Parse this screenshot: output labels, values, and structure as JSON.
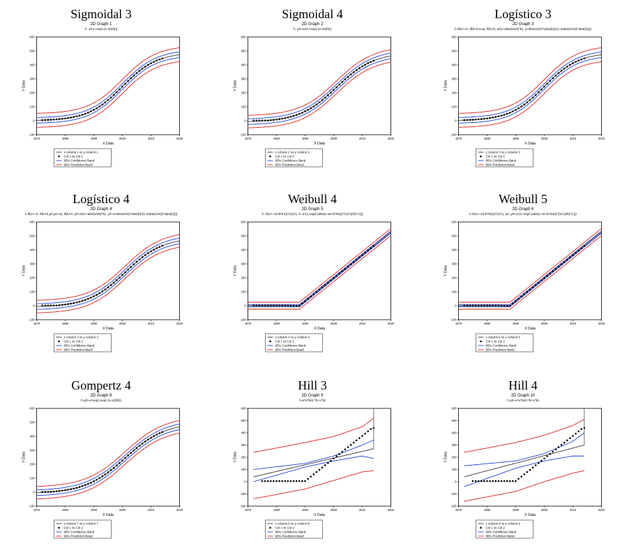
{
  "figure": {
    "colors": {
      "fit": "#333333",
      "confidence": "#1f3fd6",
      "prediction": "#e02020",
      "data_points": "#000000",
      "axes": "#000000"
    },
    "panels": [
      {
        "id": "sigmoidal-3",
        "title": "Sigmoidal 3",
        "subtitle": "2D Graph 1",
        "formula": "f= a/(1+exp(-(x-x0)/b))",
        "legend": [
          "x column 1 vs y column 1",
          "Col 1 vs Col 2",
          "95% Confidence Band",
          "95% Prediction Band"
        ],
        "chart_data": {
          "type": "line",
          "model": "sigmoid",
          "xlabel": "X Data",
          "ylabel": "Y Data",
          "xlim": [
            1970,
            2020
          ],
          "ylim": [
            -100,
            600
          ],
          "xticks": [
            1970,
            1980,
            1990,
            2000,
            2010,
            2020
          ],
          "yticks": [
            -100,
            0,
            100,
            200,
            300,
            400,
            500,
            600
          ],
          "fit": {
            "a": 490,
            "x0": 2000,
            "b": 6,
            "y0": 0
          },
          "confidence_halfwidth": 20,
          "prediction_halfwidth": 50,
          "points": {
            "x_start": 1972,
            "x_end": 2014,
            "step": 1
          }
        }
      },
      {
        "id": "sigmoidal-4",
        "title": "Sigmoidal 4",
        "subtitle": "2D Graph 2",
        "formula": "f= y0+a/(1+exp(-(x-x0)/b))",
        "legend": [
          "x column 2 vs y column 2",
          "Col 1 vs Col 2",
          "95% Confidence Band",
          "95% Prediction Band"
        ],
        "chart_data": {
          "type": "line",
          "model": "sigmoid",
          "xlabel": "X Data",
          "ylabel": "Y Data",
          "xlim": [
            1970,
            2020
          ],
          "ylim": [
            -100,
            600
          ],
          "xticks": [
            1970,
            1980,
            1990,
            2000,
            2010,
            2020
          ],
          "yticks": [
            -100,
            0,
            100,
            200,
            300,
            400,
            500,
            600
          ],
          "fit": {
            "a": 500,
            "x0": 2001,
            "b": 6.5,
            "y0": -10
          },
          "confidence_halfwidth": 20,
          "prediction_halfwidth": 45,
          "points": {
            "x_start": 1972,
            "x_end": 2014,
            "step": 1
          }
        }
      },
      {
        "id": "logistico-3",
        "title": "Logístico 3",
        "subtitle": "2D Graph 3",
        "formula": "f=if(x<=0, if(b<0,0,a), if(b>0, a/(1+abs(x/x0)^b), a*abs(x/x0)^(abs(b))/(1+(abs(x/x0))^abs(b))))",
        "legend": [
          "x column 3 vs y column 3",
          "Col 1 vs Col 2",
          "95% Confidence Band",
          "95% Prediction Band"
        ],
        "chart_data": {
          "type": "line",
          "model": "sigmoid",
          "xlabel": "X Data",
          "ylabel": "Y Data",
          "xlim": [
            1970,
            2020
          ],
          "ylim": [
            -100,
            600
          ],
          "xticks": [
            1970,
            1980,
            1990,
            2000,
            2010,
            2020
          ],
          "yticks": [
            -100,
            0,
            100,
            200,
            300,
            400,
            500,
            600
          ],
          "fit": {
            "a": 490,
            "x0": 2000,
            "b": 6,
            "y0": 0
          },
          "confidence_halfwidth": 20,
          "prediction_halfwidth": 50,
          "points": {
            "x_start": 1972,
            "x_end": 2014,
            "step": 1
          }
        }
      },
      {
        "id": "logistico-4",
        "title": "Logístico 4",
        "subtitle": "2D Graph 4",
        "formula": "f=if(x<=0, if(b<0,y0,y0+a), if(b>0, y0+a/(1+abs(x/x0)^b), y0+a*abs(x/x0)^abs(b)/(1+(abs(x/x0))^abs(b))))",
        "legend": [
          "x column 3 vs y column 3",
          "Col 1 vs Col 2",
          "95% Confidence Band",
          "95% Prediction Band"
        ],
        "chart_data": {
          "type": "line",
          "model": "sigmoid",
          "xlabel": "X Data",
          "ylabel": "Y Data",
          "xlim": [
            1970,
            2020
          ],
          "ylim": [
            -100,
            600
          ],
          "xticks": [
            1970,
            1980,
            1990,
            2000,
            2010,
            2020
          ],
          "yticks": [
            -100,
            0,
            100,
            200,
            300,
            400,
            500,
            600
          ],
          "fit": {
            "a": 500,
            "x0": 2001,
            "b": 6.5,
            "y0": -10
          },
          "confidence_halfwidth": 20,
          "prediction_halfwidth": 45,
          "points": {
            "x_start": 1972,
            "x_end": 2014,
            "step": 1
          }
        }
      },
      {
        "id": "weibull-4",
        "title": "Weibull 4",
        "subtitle": "2D Graph 5",
        "formula": "f= if(x<=x0-b*ln(2)^(1/c), 0, a*(1-exp(-(abs(x-x0+b*ln(2)^(1/c))/b)^c)))",
        "legend": [
          "x column 4 vs y column 4",
          "Col 1 vs Col 2",
          "95% Confidence Band",
          "95% Prediction Band"
        ],
        "chart_data": {
          "type": "line",
          "model": "hinge",
          "xlabel": "X Data",
          "ylabel": "Y Data",
          "xlim": [
            1970,
            2020
          ],
          "ylim": [
            -100,
            600
          ],
          "xticks": [
            1970,
            1980,
            1990,
            2000,
            2010,
            2020
          ],
          "yticks": [
            -100,
            0,
            100,
            200,
            300,
            400,
            500,
            600
          ],
          "fit": {
            "x_break": 1988,
            "y_flat": 0,
            "slope": 16.5
          },
          "confidence_halfwidth": 8,
          "prediction_halfwidth": 25,
          "points": {
            "x_start": 1972,
            "x_end": 2014,
            "step": 1
          }
        }
      },
      {
        "id": "weibull-5",
        "title": "Weibull 5",
        "subtitle": "2D Graph 6",
        "formula": "f=if(x<=x0-b*ln(2)^(1/c), y0, y0+a*(1-exp(-(abs(x-x0+b*ln(2)^(1/c))/b)^c)))",
        "legend": [
          "x column 5 vs y column 5",
          "Col 1 vs Col 2",
          "95% Confidence Band",
          "95% Prediction Band"
        ],
        "chart_data": {
          "type": "line",
          "model": "hinge",
          "xlabel": "X Data",
          "ylabel": "Y Data",
          "xlim": [
            1970,
            2020
          ],
          "ylim": [
            -100,
            600
          ],
          "xticks": [
            1970,
            1980,
            1990,
            2000,
            2010,
            2020
          ],
          "yticks": [
            -100,
            0,
            100,
            200,
            300,
            400,
            500,
            600
          ],
          "fit": {
            "x_break": 1988,
            "y_flat": 0,
            "slope": 16.5
          },
          "confidence_halfwidth": 8,
          "prediction_halfwidth": 25,
          "points": {
            "x_start": 1972,
            "x_end": 2014,
            "step": 1
          }
        }
      },
      {
        "id": "gompertz-4",
        "title": "Gompertz 4",
        "subtitle": "2D Graph 8",
        "formula": "f=y0+a*exp(-exp(-(x-x0)/b))",
        "legend": [
          "x column 7 vs y column 7",
          "Col 1 vs Col 2",
          "95% Confidence Band",
          "95% Prediction Band"
        ],
        "chart_data": {
          "type": "line",
          "model": "sigmoid",
          "xlabel": "X Data",
          "ylabel": "Y Data",
          "xlim": [
            1970,
            2020
          ],
          "ylim": [
            -100,
            600
          ],
          "xticks": [
            1970,
            1980,
            1990,
            2000,
            2010,
            2020
          ],
          "yticks": [
            -100,
            0,
            100,
            200,
            300,
            400,
            500,
            600
          ],
          "fit": {
            "a": 510,
            "x0": 2001,
            "b": 7,
            "y0": -10
          },
          "confidence_halfwidth": 20,
          "prediction_halfwidth": 45,
          "points": {
            "x_start": 1972,
            "x_end": 2014,
            "step": 1
          }
        }
      },
      {
        "id": "hill-3",
        "title": "Hill 3",
        "subtitle": "2D Graph 9",
        "formula": "f=a*x^b/(c^b+x^b)",
        "legend": [
          "x column 8 vs y column 8",
          "Col 1 vs Col 2",
          "95% Confidence Band",
          "95% Prediction Band"
        ],
        "chart_data": {
          "type": "line",
          "model": "linear",
          "xlabel": "X Data",
          "ylabel": "Y Data",
          "xlim": [
            1970,
            2020
          ],
          "ylim": [
            -200,
            600
          ],
          "xticks": [
            1970,
            1980,
            1990,
            2000,
            2010,
            2020
          ],
          "yticks": [
            -200,
            -100,
            0,
            100,
            200,
            300,
            400,
            500,
            600
          ],
          "fit": {
            "x0": 1972,
            "y0": 40,
            "x1": 2014,
            "y1": 270
          },
          "x_end": 2014,
          "confidence_points": {
            "upper": [
              [
                1972,
                100
              ],
              [
                1990,
                150
              ],
              [
                2000,
                210
              ],
              [
                2010,
                300
              ],
              [
                2014,
                340
              ]
            ],
            "lower": [
              [
                1972,
                0
              ],
              [
                1990,
                120
              ],
              [
                2000,
                170
              ],
              [
                2010,
                210
              ],
              [
                2014,
                190
              ]
            ]
          },
          "prediction_points": {
            "upper": [
              [
                1972,
                240
              ],
              [
                1990,
                320
              ],
              [
                2000,
                370
              ],
              [
                2010,
                450
              ],
              [
                2014,
                520
              ]
            ],
            "lower": [
              [
                1972,
                -140
              ],
              [
                1990,
                -60
              ],
              [
                2000,
                10
              ],
              [
                2010,
                80
              ],
              [
                2014,
                90
              ]
            ]
          },
          "points": {
            "x_start": 1975,
            "x_end": 2014,
            "step": 1
          }
        }
      },
      {
        "id": "hill-4",
        "title": "Hill 4",
        "subtitle": "2D Graph 10",
        "formula": "f=y0+a*x^b/(c^b+x^b)",
        "legend": [
          "x column 9 vs y column 9",
          "Col 1 vs Col 2",
          "95% Confidence Band",
          "95% Prediction Band"
        ],
        "chart_data": {
          "type": "line",
          "model": "linear",
          "xlabel": "X Data",
          "ylabel": "Y Data",
          "xlim": [
            1970,
            2020
          ],
          "ylim": [
            -200,
            600
          ],
          "xticks": [
            1970,
            1980,
            1990,
            2000,
            2010,
            2020
          ],
          "yticks": [
            -200,
            -100,
            0,
            100,
            200,
            300,
            400,
            500,
            600
          ],
          "fit": {
            "x0": 1972,
            "y0": 40,
            "x1": 2014,
            "y1": 300
          },
          "x_end": 2014,
          "confidence_points": {
            "upper": [
              [
                1972,
                130
              ],
              [
                1990,
                170
              ],
              [
                2000,
                230
              ],
              [
                2010,
                330
              ],
              [
                2014,
                400
              ]
            ],
            "lower": [
              [
                1972,
                -40
              ],
              [
                1990,
                110
              ],
              [
                2000,
                170
              ],
              [
                2010,
                210
              ],
              [
                2014,
                210
              ]
            ]
          },
          "prediction_points": {
            "upper": [
              [
                1972,
                240
              ],
              [
                1990,
                320
              ],
              [
                2000,
                380
              ],
              [
                2010,
                460
              ],
              [
                2014,
                510
              ]
            ],
            "lower": [
              [
                1972,
                -160
              ],
              [
                1990,
                -80
              ],
              [
                2000,
                0
              ],
              [
                2010,
                70
              ],
              [
                2014,
                90
              ]
            ]
          },
          "points": {
            "x_start": 1975,
            "x_end": 2014,
            "step": 1
          }
        }
      }
    ]
  }
}
